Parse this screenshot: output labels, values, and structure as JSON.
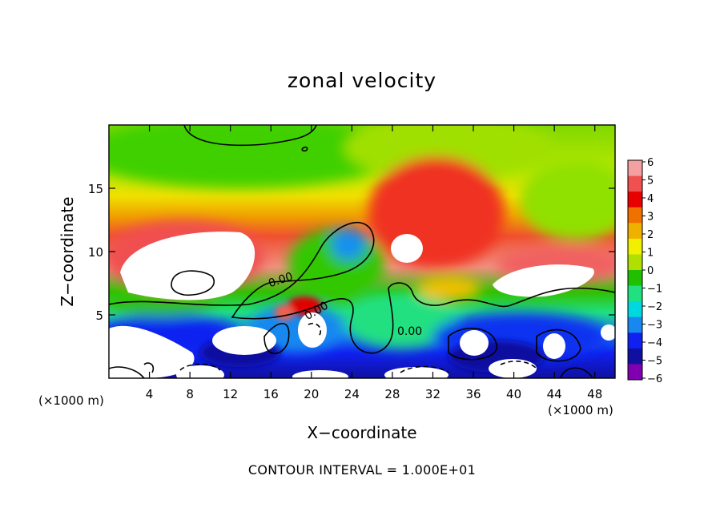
{
  "chart_data": {
    "type": "heatmap",
    "title": "zonal velocity",
    "xlabel": "X−coordinate",
    "ylabel": "Z−coordinate",
    "x_unit_label": "(×1000 m)",
    "y_unit_label": "(×1000 m)",
    "xlim": [
      0,
      50
    ],
    "ylim": [
      0,
      20
    ],
    "x_ticks": [
      4,
      8,
      12,
      16,
      20,
      24,
      28,
      32,
      36,
      40,
      44,
      48
    ],
    "y_ticks": [
      5,
      10,
      15
    ],
    "colorbar": {
      "levels": [
        "6",
        "5",
        "4",
        "3",
        "2",
        "1",
        "0",
        "−1",
        "−2",
        "−3",
        "−4",
        "−5",
        "−6"
      ],
      "colors": [
        "#f4a0a0",
        "#f05050",
        "#e80000",
        "#f07000",
        "#f0b000",
        "#f0f000",
        "#b0e000",
        "#20c000",
        "#20e080",
        "#00d8e0",
        "#1888f0",
        "#1020f0",
        "#1010a0",
        "#8000b0"
      ]
    },
    "contour_labels": [
      "0.00",
      "0.00",
      "0.00"
    ],
    "footer": "CONTOUR INTERVAL = 1.000E+01"
  }
}
